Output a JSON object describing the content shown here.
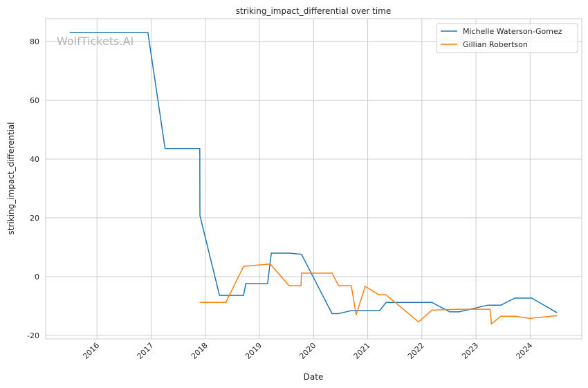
{
  "chart_data": {
    "type": "line",
    "title": "striking_impact_differential over time",
    "xlabel": "Date",
    "ylabel": "striking_impact_differential",
    "watermark": "WolfTickets.AI",
    "xlim": [
      "2015-01-20",
      "2024-12-15"
    ],
    "ylim": [
      -21.2,
      87.8
    ],
    "x_ticks": [
      "2016",
      "2017",
      "2018",
      "2019",
      "2020",
      "2021",
      "2022",
      "2023",
      "2024"
    ],
    "y_ticks": [
      -20,
      0,
      20,
      40,
      60,
      80
    ],
    "grid": true,
    "legend_position": "top-right",
    "series": [
      {
        "name": "Michelle Waterson-Gomez",
        "color": "#1f77b4",
        "x": [
          "2015-07-01",
          "2016-12-10",
          "2017-04-05",
          "2017-11-25",
          "2017-11-26",
          "2018-04-07",
          "2018-09-16",
          "2018-10-01",
          "2019-02-25",
          "2019-03-22",
          "2019-07-20",
          "2019-10-12",
          "2020-05-05",
          "2020-06-18",
          "2020-09-10",
          "2021-03-22",
          "2021-05-05",
          "2022-03-10",
          "2022-07-08",
          "2022-09-09",
          "2023-03-22",
          "2023-06-18",
          "2023-09-20",
          "2024-01-12",
          "2024-07-01"
        ],
        "y": [
          83.1,
          83.1,
          43.6,
          43.6,
          20.8,
          -6.4,
          -6.4,
          -2.4,
          -2.4,
          8.0,
          8.0,
          7.6,
          -12.6,
          -12.6,
          -11.6,
          -11.6,
          -8.8,
          -8.8,
          -12.0,
          -12.0,
          -9.7,
          -9.7,
          -7.3,
          -7.3,
          -12.3
        ]
      },
      {
        "name": "Gillian Robertson",
        "color": "#ff7f0e",
        "x": [
          "2017-11-25",
          "2018-05-20",
          "2018-09-16",
          "2019-03-15",
          "2019-07-20",
          "2019-10-08",
          "2019-10-12",
          "2020-05-05",
          "2020-06-18",
          "2020-09-12",
          "2020-10-15",
          "2020-12-15",
          "2021-03-18",
          "2021-05-05",
          "2021-12-10",
          "2022-03-10",
          "2022-09-12",
          "2023-04-05",
          "2023-04-15",
          "2023-06-18",
          "2023-09-20",
          "2024-01-01",
          "2024-07-01"
        ],
        "y": [
          -8.8,
          -8.8,
          3.5,
          4.3,
          -3.1,
          -3.1,
          1.2,
          1.2,
          -3.1,
          -3.1,
          -13.0,
          -3.3,
          -6.2,
          -6.2,
          -15.4,
          -11.4,
          -11.1,
          -11.1,
          -16.1,
          -13.5,
          -13.5,
          -14.2,
          -13.3
        ]
      }
    ]
  }
}
